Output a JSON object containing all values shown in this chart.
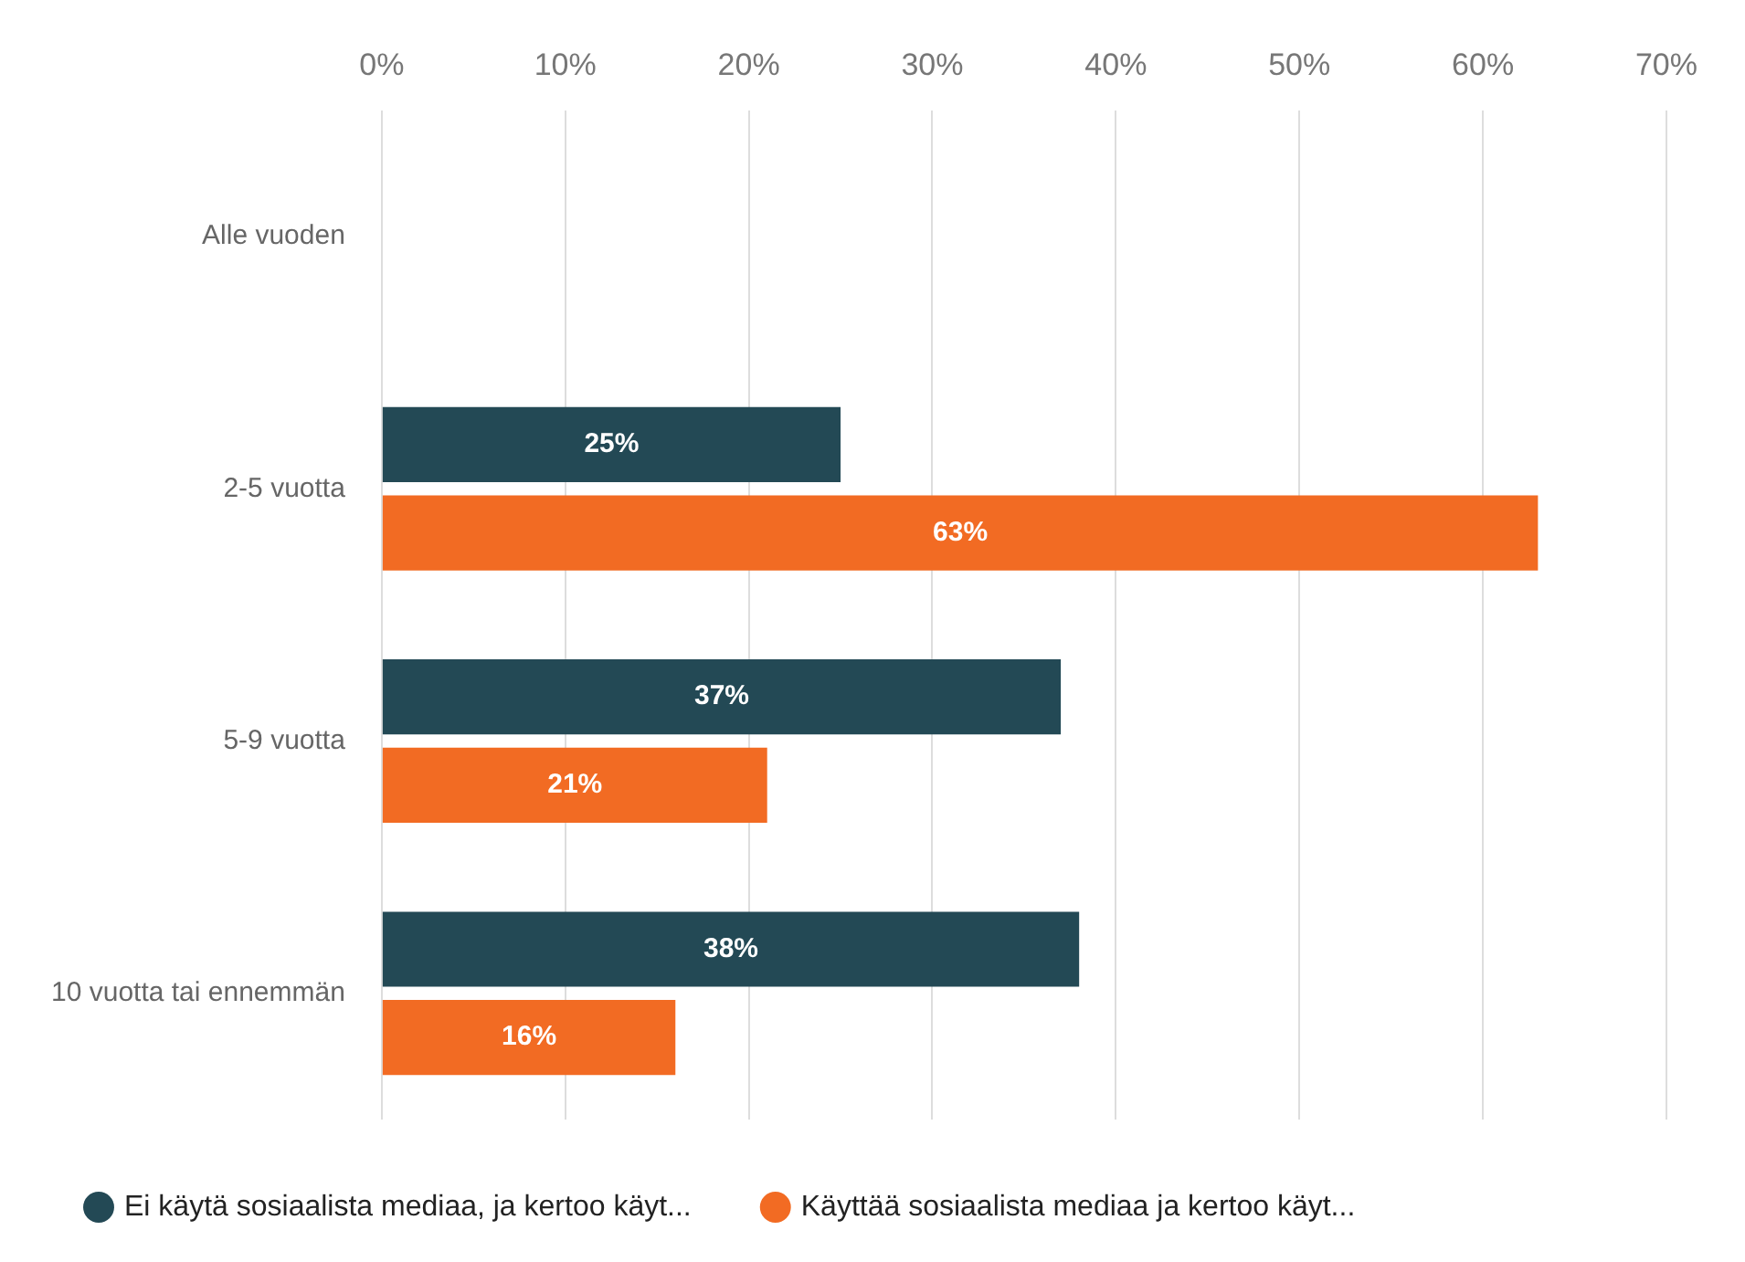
{
  "chart_data": {
    "type": "bar",
    "orientation": "horizontal",
    "categories": [
      "Alle vuoden",
      "2-5 vuotta",
      "5-9 vuotta",
      "10 vuotta tai ennemmän"
    ],
    "series": [
      {
        "name": "Ei käytä sosiaalista mediaa, ja kertoo käyt...",
        "color": "#234955",
        "values": [
          null,
          25,
          37,
          38
        ],
        "value_labels": [
          null,
          "25%",
          "37%",
          "38%"
        ]
      },
      {
        "name": "Käyttää sosiaalista mediaa ja kertoo käyt...",
        "color": "#f26b23",
        "values": [
          null,
          63,
          21,
          16
        ],
        "value_labels": [
          null,
          "63%",
          "21%",
          "16%"
        ]
      }
    ],
    "xlim": [
      0,
      70
    ],
    "xticks": [
      {
        "value": 0,
        "label": "0%"
      },
      {
        "value": 10,
        "label": "10%"
      },
      {
        "value": 20,
        "label": "20%"
      },
      {
        "value": 30,
        "label": "30%"
      },
      {
        "value": 40,
        "label": "40%"
      },
      {
        "value": 50,
        "label": "50%"
      },
      {
        "value": 60,
        "label": "60%"
      },
      {
        "value": 70,
        "label": "70%"
      }
    ],
    "grid": "x",
    "legend": "bottom"
  }
}
